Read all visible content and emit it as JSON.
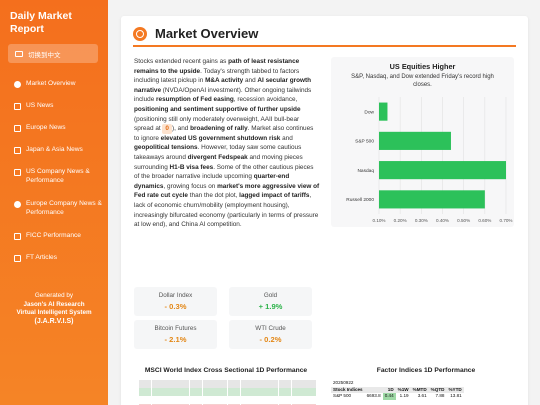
{
  "sidebar": {
    "brand": "Daily Market Report",
    "lang_button": "切换到中文",
    "items": [
      {
        "label": "Market Overview"
      },
      {
        "label": "US News"
      },
      {
        "label": "Europe News"
      },
      {
        "label": "Japan & Asia News"
      },
      {
        "label": "US Company News & Performance"
      },
      {
        "label": "Europe Company News & Performance"
      },
      {
        "label": "FICC Performance"
      },
      {
        "label": "FT Articles"
      }
    ],
    "footer": {
      "line1": "Generated by",
      "line2": "Jason's AI Research",
      "line3": "Virtual Intelligent System",
      "line4": "(J.A.R.V.I.S)"
    }
  },
  "main": {
    "section_title": "Market Overview",
    "overview": {
      "p1": "Stocks extended recent gains as ",
      "b1": "path of least resistance remains to the upside",
      "p2": ". Today's strength tabbed to factors including latest pickup in ",
      "b2": "M&A activity",
      "p3": " and ",
      "b3": "AI secular growth narrative",
      "p4": " (NVDA/OpenAI investment). Other ongoing tailwinds include ",
      "b4": "resumption of Fed easing",
      "p5": ", recession avoidance, ",
      "b5": "positioning and sentiment supportive of further upside",
      "p6": " (positioning still only moderately overweight, AAII bull-bear spread at ",
      "pill": "0",
      "p7": "), and ",
      "b6": "broadening of rally",
      "p8": ". Market also continues to ignore ",
      "b7": "elevated US government shutdown risk",
      "p9": " and ",
      "b8": "geopolitical tensions",
      "p10": ". However, today saw some cautious takeaways around ",
      "b9": "divergent Fedspeak",
      "p11": " and moving pieces surrounding ",
      "b10": "H1-B visa fees",
      "p12": ". Some of the other cautious pieces of the broader narrative include upcoming ",
      "b11": "quarter-end dynamics",
      "p13": ", growing focus on ",
      "b12": "market's more aggressive view of Fed rate cut cycle",
      "p14": " than the dot plot, ",
      "b13": "lagged impact of tariffs",
      "p15": ", lack of economic churn/mobility (employment housing), increasingly bifurcated economy (particularly in terms of pressure at low end), and China AI competition."
    },
    "kpis": [
      {
        "label": "Dollar Index",
        "value": "- 0.3%",
        "direction": "neg"
      },
      {
        "label": "Gold",
        "value": "+ 1.9%",
        "direction": "pos"
      },
      {
        "label": "Bitcoin Futures",
        "value": "- 2.1%",
        "direction": "neg"
      },
      {
        "label": "WTI Crude",
        "value": "- 0.2%",
        "direction": "neg"
      }
    ],
    "msci_title": "MSCI World Index Cross Sectional 1D Performance",
    "factor_title": "Factor Indices 1D Performance",
    "factor_table": {
      "date": "20250922",
      "headers": [
        "Stock Indices",
        "",
        "1D",
        "%1W",
        "%MTD",
        "%QTD",
        "%YTD"
      ],
      "rows": [
        {
          "name": "S&P 500",
          "level": "6693.8",
          "d1": "0.44",
          "w1": "1.19",
          "mtd": "3.61",
          "qtd": "7.88",
          "ytd": "13.81"
        }
      ]
    }
  },
  "chart_data": {
    "type": "bar",
    "orientation": "horizontal",
    "title": "US Equities Higher",
    "subtitle": "S&P, Nasdaq, and Dow extended Friday's record high closes.",
    "categories": [
      "Dow",
      "S&P 500",
      "Nasdaq",
      "Russell 2000"
    ],
    "values": [
      0.14,
      0.44,
      0.7,
      0.6
    ],
    "xlim": [
      0.1,
      0.7
    ],
    "xticks": [
      "0.10%",
      "0.20%",
      "0.30%",
      "0.40%",
      "0.50%",
      "0.60%",
      "0.70%"
    ],
    "grid": true,
    "color": "#2cc15a"
  }
}
